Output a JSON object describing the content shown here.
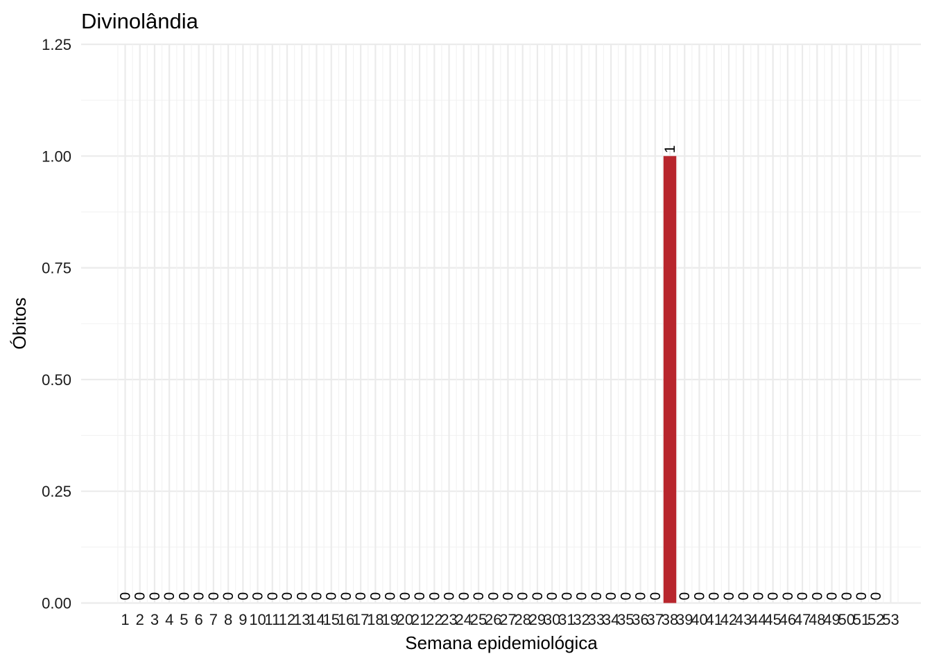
{
  "chart_data": {
    "type": "bar",
    "title": "Divinolândia",
    "xlabel": "Semana epidemiológica",
    "ylabel": "Óbitos",
    "categories": [
      "1",
      "2",
      "3",
      "4",
      "5",
      "6",
      "7",
      "8",
      "9",
      "10",
      "11",
      "12",
      "13",
      "14",
      "15",
      "16",
      "17",
      "18",
      "19",
      "20",
      "21",
      "22",
      "23",
      "24",
      "25",
      "26",
      "27",
      "28",
      "29",
      "30",
      "31",
      "32",
      "33",
      "34",
      "35",
      "36",
      "37",
      "38",
      "39",
      "40",
      "41",
      "42",
      "43",
      "44",
      "45",
      "46",
      "47",
      "48",
      "49",
      "50",
      "51",
      "52",
      "53"
    ],
    "values": [
      0,
      0,
      0,
      0,
      0,
      0,
      0,
      0,
      0,
      0,
      0,
      0,
      0,
      0,
      0,
      0,
      0,
      0,
      0,
      0,
      0,
      0,
      0,
      0,
      0,
      0,
      0,
      0,
      0,
      0,
      0,
      0,
      0,
      0,
      0,
      0,
      0,
      1,
      0,
      0,
      0,
      0,
      0,
      0,
      0,
      0,
      0,
      0,
      0,
      0,
      0,
      0,
      null
    ],
    "data_labels": [
      "0",
      "0",
      "0",
      "0",
      "0",
      "0",
      "0",
      "0",
      "0",
      "0",
      "0",
      "0",
      "0",
      "0",
      "0",
      "0",
      "0",
      "0",
      "0",
      "0",
      "0",
      "0",
      "0",
      "0",
      "0",
      "0",
      "0",
      "0",
      "0",
      "0",
      "0",
      "0",
      "0",
      "0",
      "0",
      "0",
      "0",
      "1",
      "0",
      "0",
      "0",
      "0",
      "0",
      "0",
      "0",
      "0",
      "0",
      "0",
      "0",
      "0",
      "0",
      "0",
      ""
    ],
    "yticks": [
      "0.00",
      "0.25",
      "0.50",
      "0.75",
      "1.00",
      "1.25"
    ],
    "ylim": [
      0,
      1.25
    ],
    "bar_color": "#b8262d",
    "grid": true,
    "legend": "none"
  }
}
